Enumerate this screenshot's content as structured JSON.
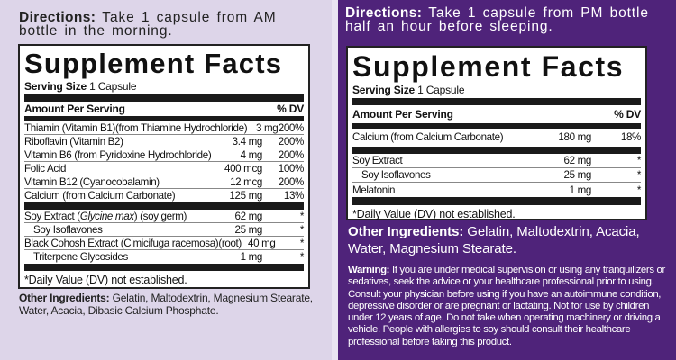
{
  "am": {
    "directions_label": "Directions:",
    "directions_text": "Take 1 capsule from AM bottle in the morning.",
    "title": "Supplement Facts",
    "serving_label": "Serving Size",
    "serving_value": "1 Capsule",
    "header_amount": "Amount Per Serving",
    "header_dv": "% DV",
    "vitamins": [
      {
        "name": "Thiamin (Vitamin B1)(from Thiamine Hydrochloride)",
        "amount": "3 mg",
        "dv": "200%"
      },
      {
        "name": "Riboflavin (Vitamin B2)",
        "amount": "3.4 mg",
        "dv": "200%"
      },
      {
        "name": "Vitamin B6 (from Pyridoxine Hydrochloride)",
        "amount": "4 mg",
        "dv": "200%"
      },
      {
        "name": "Folic Acid",
        "amount": "400 mcg",
        "dv": "100%"
      },
      {
        "name": "Vitamin B12 (Cyanocobalamin)",
        "amount": "12 mcg",
        "dv": "200%"
      },
      {
        "name": "Calcium (from Calcium Carbonate)",
        "amount": "125 mg",
        "dv": "13%"
      }
    ],
    "extracts": [
      {
        "name_pre": "Soy Extract (",
        "name_italic": "Glycine max",
        "name_post": ") (soy germ)",
        "amount": "62 mg",
        "dv": "*"
      },
      {
        "name": "Soy Isoflavones",
        "amount": "25 mg",
        "dv": "*"
      },
      {
        "name": "Black Cohosh Extract (Cimicifuga racemosa)(root)",
        "amount": "40 mg",
        "dv": "*"
      },
      {
        "name": "Triterpene Glycosides",
        "amount": "1 mg",
        "dv": "*"
      }
    ],
    "footnote": "*Daily Value (DV) not established.",
    "other_label": "Other Ingredients:",
    "other_text": "Gelatin, Maltodextrin, Magnesium Stearate, Water, Acacia, Dibasic Calcium Phosphate."
  },
  "pm": {
    "directions_label": "Directions:",
    "directions_text": "Take 1 capsule from PM bottle half an hour before sleeping.",
    "title": "Supplement Facts",
    "serving_label": "Serving Size",
    "serving_value": "1 Capsule",
    "header_amount": "Amount Per Serving",
    "header_dv": "% DV",
    "minerals": [
      {
        "name": "Calcium (from Calcium Carbonate)",
        "amount": "180 mg",
        "dv": "18%"
      }
    ],
    "extracts": [
      {
        "name": "Soy Extract",
        "amount": "62 mg",
        "dv": "*"
      },
      {
        "name": "Soy Isoflavones",
        "amount": "25 mg",
        "dv": "*"
      },
      {
        "name": "Melatonin",
        "amount": "1 mg",
        "dv": "*"
      }
    ],
    "footnote": "*Daily Value (DV) not established.",
    "other_label": "Other Ingredients:",
    "other_text": "Gelatin, Maltodextrin, Acacia, Water, Magnesium Stearate.",
    "warning_label": "Warning:",
    "warning_text": "If you are under medical supervision or using any tranquilizers or sedatives, seek the advice or your healthcare professional prior to using. Consult your physician before using if you have an autoimmune condition, depressive disorder or are pregnant or lactating. Not for use by children under 12 years of age. Do not take when operating machinery or driving a vehicle. People with allergies to soy should consult their healthcare professional before taking this product."
  },
  "colors": {
    "am_background": "#ddd5e9",
    "pm_background": "#4f237a",
    "panel_white": "#ffffff",
    "rule_black": "#1a1a1a"
  }
}
